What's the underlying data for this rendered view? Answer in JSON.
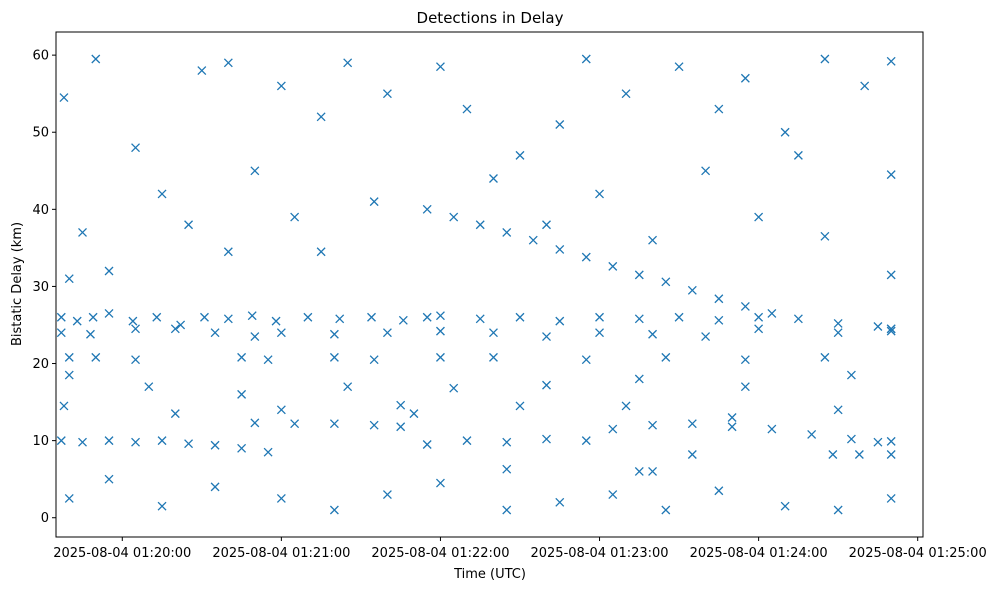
{
  "chart_data": {
    "type": "scatter",
    "title": "Detections in Delay",
    "xlabel": "Time (UTC)",
    "ylabel": "Bistatic Delay (km)",
    "x_unit": "time (UTC)",
    "xlim": [
      "2025-08-04 01:19:35",
      "2025-08-04 01:25:02"
    ],
    "ylim": [
      -2.5,
      63
    ],
    "xticks": [
      "2025-08-04 01:20:00",
      "2025-08-04 01:21:00",
      "2025-08-04 01:22:00",
      "2025-08-04 01:23:00",
      "2025-08-04 01:24:00",
      "2025-08-04 01:25:00"
    ],
    "yticks": [
      0,
      10,
      20,
      30,
      40,
      50,
      60
    ],
    "marker": "x",
    "color": "#1f77b4",
    "grid": false,
    "legend": "none",
    "series": [
      {
        "points": [
          [
            "2025-08-04 01:19:37",
            26
          ],
          [
            "2025-08-04 01:19:43",
            25.5
          ],
          [
            "2025-08-04 01:19:49",
            26
          ],
          [
            "2025-08-04 01:19:55",
            26.5
          ],
          [
            "2025-08-04 01:20:04",
            25.5
          ],
          [
            "2025-08-04 01:20:13",
            26
          ],
          [
            "2025-08-04 01:20:22",
            25
          ],
          [
            "2025-08-04 01:20:31",
            26
          ],
          [
            "2025-08-04 01:20:40",
            25.8
          ],
          [
            "2025-08-04 01:20:49",
            26.2
          ],
          [
            "2025-08-04 01:20:58",
            25.5
          ],
          [
            "2025-08-04 01:21:10",
            26
          ],
          [
            "2025-08-04 01:21:22",
            25.8
          ],
          [
            "2025-08-04 01:21:34",
            26
          ],
          [
            "2025-08-04 01:21:46",
            25.6
          ],
          [
            "2025-08-04 01:22:00",
            26.2
          ],
          [
            "2025-08-04 01:22:15",
            25.8
          ],
          [
            "2025-08-04 01:22:30",
            26
          ],
          [
            "2025-08-04 01:22:45",
            25.5
          ],
          [
            "2025-08-04 01:23:00",
            26
          ],
          [
            "2025-08-04 01:23:15",
            25.8
          ],
          [
            "2025-08-04 01:23:30",
            26
          ],
          [
            "2025-08-04 01:23:45",
            25.6
          ],
          [
            "2025-08-04 01:24:00",
            26
          ],
          [
            "2025-08-04 01:24:15",
            25.8
          ],
          [
            "2025-08-04 01:24:30",
            25.2
          ],
          [
            "2025-08-04 01:24:45",
            24.8
          ],
          [
            "2025-08-04 01:24:50",
            24.5
          ],
          [
            "2025-08-04 01:19:37",
            24
          ],
          [
            "2025-08-04 01:19:48",
            23.8
          ],
          [
            "2025-08-04 01:20:05",
            24.5
          ],
          [
            "2025-08-04 01:20:20",
            24.5
          ],
          [
            "2025-08-04 01:20:35",
            24
          ],
          [
            "2025-08-04 01:20:50",
            23.5
          ],
          [
            "2025-08-04 01:21:00",
            24
          ],
          [
            "2025-08-04 01:21:20",
            23.8
          ],
          [
            "2025-08-04 01:21:40",
            24
          ],
          [
            "2025-08-04 01:22:00",
            24.2
          ],
          [
            "2025-08-04 01:22:20",
            24
          ],
          [
            "2025-08-04 01:22:40",
            23.5
          ],
          [
            "2025-08-04 01:23:00",
            24
          ],
          [
            "2025-08-04 01:23:20",
            23.8
          ],
          [
            "2025-08-04 01:23:40",
            23.5
          ],
          [
            "2025-08-04 01:24:00",
            24.5
          ],
          [
            "2025-08-04 01:24:30",
            24
          ],
          [
            "2025-08-04 01:24:50",
            24.2
          ],
          [
            "2025-08-04 01:19:40",
            20.8
          ],
          [
            "2025-08-04 01:19:50",
            20.8
          ],
          [
            "2025-08-04 01:20:05",
            20.5
          ],
          [
            "2025-08-04 01:20:45",
            20.8
          ],
          [
            "2025-08-04 01:20:55",
            20.5
          ],
          [
            "2025-08-04 01:21:20",
            20.8
          ],
          [
            "2025-08-04 01:21:35",
            20.5
          ],
          [
            "2025-08-04 01:22:00",
            20.8
          ],
          [
            "2025-08-04 01:22:20",
            20.8
          ],
          [
            "2025-08-04 01:22:55",
            20.5
          ],
          [
            "2025-08-04 01:23:25",
            20.8
          ],
          [
            "2025-08-04 01:23:55",
            20.5
          ],
          [
            "2025-08-04 01:24:25",
            20.8
          ],
          [
            "2025-08-04 01:19:37",
            10
          ],
          [
            "2025-08-04 01:19:45",
            9.8
          ],
          [
            "2025-08-04 01:19:55",
            10
          ],
          [
            "2025-08-04 01:20:05",
            9.8
          ],
          [
            "2025-08-04 01:20:15",
            10
          ],
          [
            "2025-08-04 01:20:25",
            9.6
          ],
          [
            "2025-08-04 01:20:35",
            9.4
          ],
          [
            "2025-08-04 01:20:45",
            9
          ],
          [
            "2025-08-04 01:20:55",
            8.5
          ],
          [
            "2025-08-04 01:20:50",
            12.3
          ],
          [
            "2025-08-04 01:21:05",
            12.2
          ],
          [
            "2025-08-04 01:21:20",
            12.2
          ],
          [
            "2025-08-04 01:21:35",
            12
          ],
          [
            "2025-08-04 01:21:45",
            11.8
          ],
          [
            "2025-08-04 01:21:55",
            9.5
          ],
          [
            "2025-08-04 01:22:10",
            10
          ],
          [
            "2025-08-04 01:22:25",
            9.8
          ],
          [
            "2025-08-04 01:22:40",
            10.2
          ],
          [
            "2025-08-04 01:22:55",
            10
          ],
          [
            "2025-08-04 01:23:05",
            11.5
          ],
          [
            "2025-08-04 01:23:20",
            12
          ],
          [
            "2025-08-04 01:23:35",
            12.2
          ],
          [
            "2025-08-04 01:23:50",
            11.8
          ],
          [
            "2025-08-04 01:24:05",
            11.5
          ],
          [
            "2025-08-04 01:24:20",
            10.8
          ],
          [
            "2025-08-04 01:24:35",
            10.2
          ],
          [
            "2025-08-04 01:24:45",
            9.8
          ],
          [
            "2025-08-04 01:24:50",
            9.9
          ],
          [
            "2025-08-04 01:24:28",
            8.2
          ],
          [
            "2025-08-04 01:24:38",
            8.2
          ],
          [
            "2025-08-04 01:24:50",
            8.2
          ],
          [
            "2025-08-04 01:23:35",
            8.2
          ],
          [
            "2025-08-04 01:21:45",
            14.6
          ],
          [
            "2025-08-04 01:23:15",
            6
          ],
          [
            "2025-08-04 01:23:20",
            6
          ],
          [
            "2025-08-04 01:22:25",
            6.3
          ],
          [
            "2025-08-04 01:21:55",
            40
          ],
          [
            "2025-08-04 01:22:05",
            39
          ],
          [
            "2025-08-04 01:22:15",
            38
          ],
          [
            "2025-08-04 01:22:25",
            37
          ],
          [
            "2025-08-04 01:22:35",
            36
          ],
          [
            "2025-08-04 01:22:45",
            34.8
          ],
          [
            "2025-08-04 01:22:55",
            33.8
          ],
          [
            "2025-08-04 01:23:05",
            32.6
          ],
          [
            "2025-08-04 01:23:15",
            31.5
          ],
          [
            "2025-08-04 01:23:25",
            30.6
          ],
          [
            "2025-08-04 01:23:35",
            29.5
          ],
          [
            "2025-08-04 01:23:45",
            28.4
          ],
          [
            "2025-08-04 01:23:55",
            27.4
          ],
          [
            "2025-08-04 01:24:05",
            26.5
          ],
          [
            "2025-08-04 01:19:55",
            32
          ],
          [
            "2025-08-04 01:19:40",
            31
          ],
          [
            "2025-08-04 01:21:15",
            34.5
          ],
          [
            "2025-08-04 01:20:40",
            34.5
          ],
          [
            "2025-08-04 01:24:25",
            36.5
          ],
          [
            "2025-08-04 01:24:50",
            31.5
          ],
          [
            "2025-08-04 01:19:38",
            54.5
          ],
          [
            "2025-08-04 01:19:50",
            59.5
          ],
          [
            "2025-08-04 01:20:15",
            42
          ],
          [
            "2025-08-04 01:20:30",
            58
          ],
          [
            "2025-08-04 01:20:40",
            59
          ],
          [
            "2025-08-04 01:21:00",
            56
          ],
          [
            "2025-08-04 01:21:15",
            52
          ],
          [
            "2025-08-04 01:21:25",
            59
          ],
          [
            "2025-08-04 01:21:40",
            55
          ],
          [
            "2025-08-04 01:22:00",
            58.5
          ],
          [
            "2025-08-04 01:22:10",
            53
          ],
          [
            "2025-08-04 01:22:30",
            47
          ],
          [
            "2025-08-04 01:22:45",
            51
          ],
          [
            "2025-08-04 01:22:55",
            59.5
          ],
          [
            "2025-08-04 01:23:10",
            55
          ],
          [
            "2025-08-04 01:23:30",
            58.5
          ],
          [
            "2025-08-04 01:23:45",
            53
          ],
          [
            "2025-08-04 01:23:55",
            57
          ],
          [
            "2025-08-04 01:24:10",
            50
          ],
          [
            "2025-08-04 01:24:25",
            59.5
          ],
          [
            "2025-08-04 01:24:40",
            56
          ],
          [
            "2025-08-04 01:24:50",
            59.2
          ],
          [
            "2025-08-04 01:20:05",
            48
          ],
          [
            "2025-08-04 01:20:50",
            45
          ],
          [
            "2025-08-04 01:21:35",
            41
          ],
          [
            "2025-08-04 01:22:20",
            44
          ],
          [
            "2025-08-04 01:23:00",
            42
          ],
          [
            "2025-08-04 01:23:40",
            45
          ],
          [
            "2025-08-04 01:24:15",
            47
          ],
          [
            "2025-08-04 01:24:50",
            44.5
          ],
          [
            "2025-08-04 01:19:45",
            37
          ],
          [
            "2025-08-04 01:20:25",
            38
          ],
          [
            "2025-08-04 01:21:05",
            39
          ],
          [
            "2025-08-04 01:22:40",
            38
          ],
          [
            "2025-08-04 01:23:20",
            36
          ],
          [
            "2025-08-04 01:24:00",
            39
          ],
          [
            "2025-08-04 01:19:40",
            18.5
          ],
          [
            "2025-08-04 01:20:10",
            17
          ],
          [
            "2025-08-04 01:20:45",
            16
          ],
          [
            "2025-08-04 01:21:25",
            17
          ],
          [
            "2025-08-04 01:22:05",
            16.8
          ],
          [
            "2025-08-04 01:22:40",
            17.2
          ],
          [
            "2025-08-04 01:23:15",
            18
          ],
          [
            "2025-08-04 01:23:55",
            17
          ],
          [
            "2025-08-04 01:24:35",
            18.5
          ],
          [
            "2025-08-04 01:19:38",
            14.5
          ],
          [
            "2025-08-04 01:20:20",
            13.5
          ],
          [
            "2025-08-04 01:21:00",
            14
          ],
          [
            "2025-08-04 01:21:50",
            13.5
          ],
          [
            "2025-08-04 01:22:30",
            14.5
          ],
          [
            "2025-08-04 01:23:10",
            14.5
          ],
          [
            "2025-08-04 01:23:50",
            13
          ],
          [
            "2025-08-04 01:24:30",
            14
          ],
          [
            "2025-08-04 01:19:40",
            2.5
          ],
          [
            "2025-08-04 01:19:55",
            5
          ],
          [
            "2025-08-04 01:20:15",
            1.5
          ],
          [
            "2025-08-04 01:20:35",
            4
          ],
          [
            "2025-08-04 01:21:00",
            2.5
          ],
          [
            "2025-08-04 01:21:20",
            1
          ],
          [
            "2025-08-04 01:21:40",
            3
          ],
          [
            "2025-08-04 01:22:00",
            4.5
          ],
          [
            "2025-08-04 01:22:25",
            1
          ],
          [
            "2025-08-04 01:22:45",
            2
          ],
          [
            "2025-08-04 01:23:05",
            3
          ],
          [
            "2025-08-04 01:23:25",
            1
          ],
          [
            "2025-08-04 01:23:45",
            3.5
          ],
          [
            "2025-08-04 01:24:10",
            1.5
          ],
          [
            "2025-08-04 01:24:30",
            1
          ],
          [
            "2025-08-04 01:24:50",
            2.5
          ],
          [
            "2025-08-04 01:24:50",
            24.5
          ],
          [
            "2025-08-04 01:21:55",
            26
          ]
        ]
      }
    ]
  }
}
